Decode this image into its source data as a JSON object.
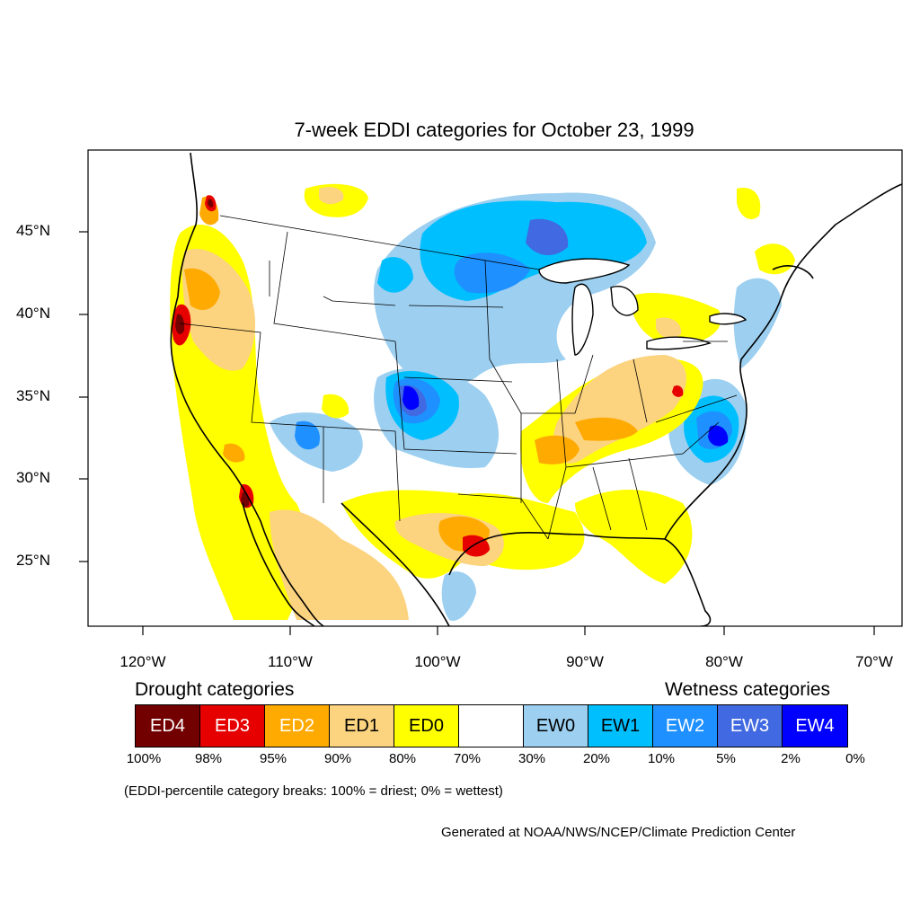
{
  "title": "7-week EDDI categories for October 23, 1999",
  "lat_labels": [
    "45°N",
    "40°N",
    "35°N",
    "30°N",
    "25°N"
  ],
  "lon_labels": [
    "120°W",
    "110°W",
    "100°W",
    "90°W",
    "80°W",
    "70°W"
  ],
  "drought_heading": "Drought categories",
  "wetness_heading": "Wetness categories",
  "categories": [
    {
      "label": "ED4",
      "color": "#730000",
      "text_color": "#ffffff"
    },
    {
      "label": "ED3",
      "color": "#e60000",
      "text_color": "#ffffff"
    },
    {
      "label": "ED2",
      "color": "#ffaa00",
      "text_color": "#ffffff"
    },
    {
      "label": "ED1",
      "color": "#fcd37f",
      "text_color": "#000000"
    },
    {
      "label": "ED0",
      "color": "#ffff00",
      "text_color": "#000000"
    },
    {
      "label": "",
      "color": "#ffffff",
      "text_color": "#000000"
    },
    {
      "label": "EW0",
      "color": "#9ccff0",
      "text_color": "#000000"
    },
    {
      "label": "EW1",
      "color": "#00bfff",
      "text_color": "#000000"
    },
    {
      "label": "EW2",
      "color": "#1e90ff",
      "text_color": "#ffffff"
    },
    {
      "label": "EW3",
      "color": "#4169e1",
      "text_color": "#ffffff"
    },
    {
      "label": "EW4",
      "color": "#0000ff",
      "text_color": "#ffffff"
    }
  ],
  "breaks": [
    "100%",
    "98%",
    "95%",
    "90%",
    "80%",
    "70%",
    "30%",
    "20%",
    "10%",
    "5%",
    "2%",
    "0%"
  ],
  "note": "(EDDI-percentile category breaks: 100% = driest; 0% = wettest)",
  "credit": "Generated at NOAA/NWS/NCEP/Climate Prediction Center",
  "map_colors": {
    "ed4": "#730000",
    "ed3": "#e60000",
    "ed2": "#ffaa00",
    "ed1": "#fcd37f",
    "ed0": "#ffff00",
    "ew0": "#9ccff0",
    "ew1": "#00bfff",
    "ew2": "#1e90ff",
    "ew3": "#4169e1",
    "ew4": "#0000ff"
  }
}
